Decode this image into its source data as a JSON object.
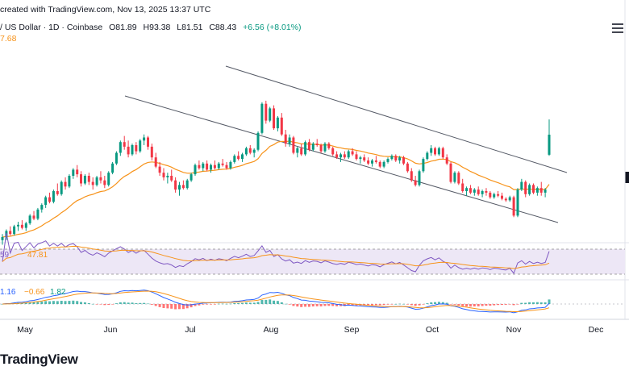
{
  "header": {
    "line1": "created with TradingView.com, Nov 13, 2025 13:37 UTC",
    "symbol": "/ US Dollar · 1D · Coinbase",
    "open": "O81.89",
    "high": "H93.38",
    "low": "L81.51",
    "close": "C88.43",
    "change": "+6.56 (+8.01%)",
    "ma_value": "7.68"
  },
  "rsi": {
    "value1": "59",
    "value2": "47.81"
  },
  "macd": {
    "value1": "1.16",
    "value2": "−0.66",
    "value3": "1.82"
  },
  "logo": "TradingView",
  "colors": {
    "up": "#089981",
    "down": "#f23645",
    "ma": "#f7931a",
    "rsi": "#7e57c2",
    "macd": "#2962ff",
    "signal": "#f7931a",
    "rsi_band": "#ede7f6"
  },
  "chart_data": {
    "type": "candlestick",
    "title": "",
    "x_tick_labels": [
      "May",
      "Jun",
      "Jul",
      "Aug",
      "Sep",
      "Oct",
      "Nov",
      "Dec"
    ],
    "ylabel": "",
    "xlabel": "",
    "price_range": [
      60,
      110
    ],
    "ohlc": [
      [
        54.0,
        56.0,
        52.5,
        55.0
      ],
      [
        55.0,
        57.5,
        54.0,
        57.0
      ],
      [
        57.0,
        58.5,
        55.5,
        56.0
      ],
      [
        56.0,
        59.0,
        55.5,
        58.5
      ],
      [
        58.5,
        60.0,
        57.0,
        59.0
      ],
      [
        59.0,
        60.5,
        57.5,
        58.0
      ],
      [
        58.0,
        60.0,
        57.0,
        59.5
      ],
      [
        59.5,
        62.5,
        59.0,
        62.0
      ],
      [
        62.0,
        63.5,
        60.5,
        61.0
      ],
      [
        61.0,
        64.5,
        60.5,
        64.0
      ],
      [
        64.0,
        66.0,
        63.0,
        65.5
      ],
      [
        65.5,
        68.5,
        64.5,
        68.0
      ],
      [
        68.0,
        69.5,
        66.0,
        66.5
      ],
      [
        66.5,
        70.5,
        66.0,
        70.0
      ],
      [
        70.0,
        72.5,
        68.5,
        69.0
      ],
      [
        69.0,
        73.5,
        68.5,
        73.0
      ],
      [
        73.0,
        74.5,
        70.5,
        71.5
      ],
      [
        71.5,
        75.5,
        71.0,
        75.0
      ],
      [
        75.0,
        77.5,
        74.0,
        77.0
      ],
      [
        77.0,
        78.5,
        74.5,
        75.5
      ],
      [
        75.5,
        76.5,
        71.5,
        72.5
      ],
      [
        72.5,
        75.5,
        72.0,
        75.0
      ],
      [
        75.0,
        76.0,
        72.0,
        73.0
      ],
      [
        73.0,
        74.5,
        70.5,
        72.0
      ],
      [
        72.0,
        75.0,
        71.5,
        74.5
      ],
      [
        74.5,
        76.5,
        72.5,
        73.5
      ],
      [
        73.5,
        75.0,
        71.0,
        72.0
      ],
      [
        72.0,
        76.5,
        71.5,
        76.0
      ],
      [
        76.0,
        79.5,
        75.5,
        79.0
      ],
      [
        79.0,
        83.0,
        78.5,
        82.5
      ],
      [
        82.5,
        86.5,
        81.5,
        86.0
      ],
      [
        86.0,
        88.0,
        83.5,
        84.5
      ],
      [
        84.5,
        86.5,
        81.0,
        82.0
      ],
      [
        82.0,
        85.5,
        81.5,
        85.0
      ],
      [
        85.0,
        86.0,
        82.0,
        83.0
      ],
      [
        83.0,
        87.0,
        82.5,
        86.5
      ],
      [
        86.5,
        88.5,
        85.0,
        87.5
      ],
      [
        87.5,
        88.0,
        83.5,
        84.5
      ],
      [
        84.5,
        85.5,
        80.0,
        81.0
      ],
      [
        81.0,
        82.5,
        77.5,
        78.0
      ],
      [
        78.0,
        79.5,
        75.0,
        76.0
      ],
      [
        76.0,
        77.5,
        73.5,
        74.5
      ],
      [
        74.5,
        76.0,
        72.5,
        75.0
      ],
      [
        75.0,
        77.0,
        73.0,
        73.5
      ],
      [
        73.5,
        74.5,
        69.5,
        70.5
      ],
      [
        70.5,
        73.0,
        68.5,
        72.0
      ],
      [
        72.0,
        73.5,
        70.5,
        71.0
      ],
      [
        71.0,
        74.0,
        70.5,
        73.5
      ],
      [
        73.5,
        76.0,
        73.0,
        75.5
      ],
      [
        75.5,
        79.0,
        75.0,
        78.5
      ],
      [
        78.5,
        80.0,
        77.0,
        77.5
      ],
      [
        77.5,
        79.5,
        76.5,
        79.0
      ],
      [
        79.0,
        80.0,
        76.5,
        77.0
      ],
      [
        77.0,
        79.0,
        76.0,
        78.5
      ],
      [
        78.5,
        80.0,
        77.0,
        77.5
      ],
      [
        77.5,
        79.5,
        77.0,
        79.0
      ],
      [
        79.0,
        80.5,
        78.0,
        78.5
      ],
      [
        78.5,
        79.5,
        77.0,
        77.5
      ],
      [
        77.5,
        80.0,
        77.0,
        79.5
      ],
      [
        79.5,
        82.0,
        79.0,
        81.5
      ],
      [
        81.5,
        83.0,
        80.0,
        80.5
      ],
      [
        80.5,
        82.5,
        79.5,
        82.0
      ],
      [
        82.0,
        84.5,
        81.5,
        84.0
      ],
      [
        84.0,
        85.0,
        82.0,
        82.5
      ],
      [
        82.5,
        84.0,
        81.0,
        83.5
      ],
      [
        83.5,
        89.5,
        83.0,
        89.0
      ],
      [
        89.0,
        99.0,
        88.5,
        98.5
      ],
      [
        98.5,
        99.5,
        92.0,
        93.0
      ],
      [
        93.0,
        97.5,
        92.5,
        97.0
      ],
      [
        97.0,
        98.0,
        90.0,
        90.5
      ],
      [
        90.5,
        94.5,
        89.5,
        94.0
      ],
      [
        94.0,
        95.5,
        88.0,
        88.5
      ],
      [
        88.5,
        90.0,
        84.5,
        85.5
      ],
      [
        85.5,
        88.5,
        84.5,
        87.5
      ],
      [
        87.5,
        88.0,
        82.0,
        82.5
      ],
      [
        82.5,
        84.5,
        81.0,
        84.0
      ],
      [
        84.0,
        85.5,
        81.5,
        82.0
      ],
      [
        82.0,
        86.5,
        81.5,
        86.0
      ],
      [
        86.0,
        87.0,
        83.0,
        83.5
      ],
      [
        83.5,
        86.0,
        83.0,
        85.5
      ],
      [
        85.5,
        87.0,
        84.5,
        85.0
      ],
      [
        85.0,
        85.5,
        82.5,
        83.0
      ],
      [
        83.0,
        86.0,
        82.5,
        85.5
      ],
      [
        85.5,
        86.0,
        83.5,
        84.0
      ],
      [
        84.0,
        84.5,
        81.5,
        82.0
      ],
      [
        82.0,
        83.0,
        80.5,
        81.0
      ],
      [
        81.0,
        82.5,
        79.5,
        82.0
      ],
      [
        82.0,
        83.0,
        80.5,
        81.0
      ],
      [
        81.0,
        83.5,
        80.5,
        83.0
      ],
      [
        83.0,
        84.0,
        81.5,
        82.0
      ],
      [
        82.0,
        83.0,
        80.0,
        80.5
      ],
      [
        80.5,
        81.5,
        79.0,
        81.0
      ],
      [
        81.0,
        82.0,
        79.5,
        80.0
      ],
      [
        80.0,
        81.0,
        78.5,
        79.0
      ],
      [
        79.0,
        80.5,
        78.0,
        80.0
      ],
      [
        80.0,
        81.5,
        79.0,
        79.5
      ],
      [
        79.5,
        80.0,
        77.5,
        78.0
      ],
      [
        78.0,
        80.0,
        77.5,
        79.5
      ],
      [
        79.5,
        81.0,
        79.0,
        80.5
      ],
      [
        80.5,
        82.0,
        80.0,
        81.5
      ],
      [
        81.5,
        82.0,
        79.5,
        80.0
      ],
      [
        80.0,
        81.5,
        79.0,
        81.0
      ],
      [
        81.0,
        81.5,
        78.5,
        79.0
      ],
      [
        79.0,
        79.5,
        76.0,
        76.5
      ],
      [
        76.5,
        77.5,
        73.0,
        73.5
      ],
      [
        73.5,
        75.0,
        71.5,
        72.0
      ],
      [
        72.0,
        77.0,
        71.5,
        76.5
      ],
      [
        76.5,
        81.0,
        76.0,
        80.5
      ],
      [
        80.5,
        83.0,
        80.0,
        82.5
      ],
      [
        82.5,
        85.0,
        81.5,
        84.0
      ],
      [
        84.0,
        84.5,
        81.5,
        82.0
      ],
      [
        82.0,
        84.5,
        81.5,
        84.0
      ],
      [
        84.0,
        84.5,
        80.5,
        81.0
      ],
      [
        81.0,
        82.0,
        78.5,
        79.0
      ],
      [
        79.0,
        79.5,
        72.5,
        73.0
      ],
      [
        73.0,
        76.5,
        72.5,
        76.0
      ],
      [
        76.0,
        76.5,
        72.0,
        72.5
      ],
      [
        72.5,
        74.0,
        69.5,
        70.0
      ],
      [
        70.0,
        71.5,
        68.5,
        71.0
      ],
      [
        71.0,
        72.0,
        69.0,
        69.5
      ],
      [
        69.5,
        71.0,
        68.5,
        70.5
      ],
      [
        70.5,
        71.5,
        68.5,
        69.0
      ],
      [
        69.0,
        70.5,
        68.0,
        70.0
      ],
      [
        70.0,
        71.0,
        68.5,
        69.5
      ],
      [
        69.5,
        70.0,
        67.5,
        68.0
      ],
      [
        68.0,
        69.5,
        67.5,
        69.0
      ],
      [
        69.0,
        70.0,
        68.0,
        68.5
      ],
      [
        68.5,
        69.5,
        67.0,
        67.5
      ],
      [
        67.5,
        68.0,
        66.5,
        67.0
      ],
      [
        67.0,
        68.5,
        66.5,
        68.0
      ],
      [
        68.0,
        68.5,
        61.5,
        62.0
      ],
      [
        62.0,
        71.0,
        61.5,
        70.5
      ],
      [
        70.5,
        74.0,
        70.0,
        73.0
      ],
      [
        73.0,
        73.5,
        68.0,
        69.0
      ],
      [
        69.0,
        72.5,
        68.5,
        72.0
      ],
      [
        72.0,
        72.5,
        69.0,
        69.5
      ],
      [
        69.5,
        71.5,
        68.5,
        71.0
      ],
      [
        71.0,
        73.0,
        68.5,
        69.5
      ],
      [
        69.5,
        71.0,
        68.0,
        70.5
      ],
      [
        81.89,
        93.38,
        81.51,
        88.43
      ]
    ],
    "moving_average_ends": [
      7.68
    ],
    "channel_lines": "descending parallel channel",
    "indicators": [
      "RSI",
      "MACD"
    ]
  }
}
